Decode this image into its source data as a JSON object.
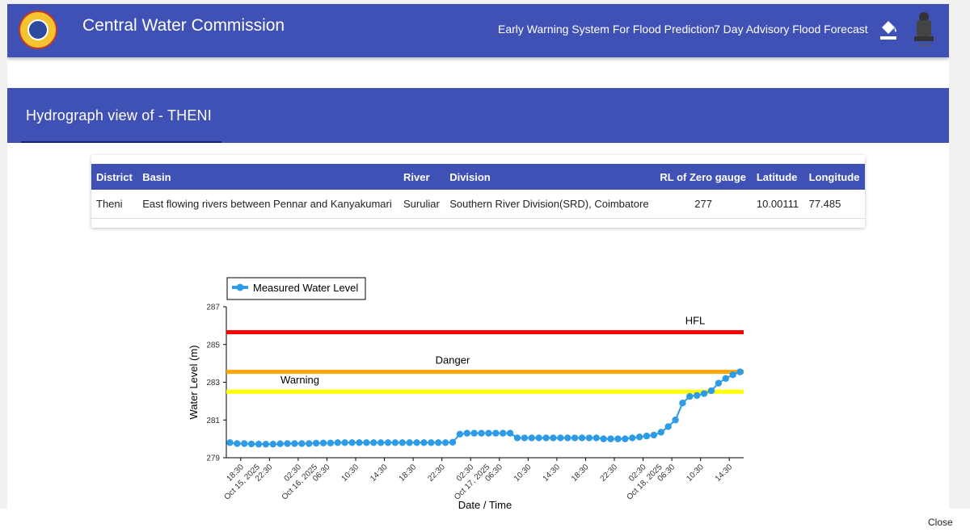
{
  "header": {
    "app_title": "Central Water Commission",
    "nav": [
      "Early Warning System For Flood Prediction",
      "7 Day Advisory Flood Forecast"
    ],
    "icons": [
      "cwc-logo-icon",
      "paint-bucket-icon",
      "national-emblem-icon"
    ]
  },
  "section": {
    "title": "Hydrograph view of - THENI"
  },
  "station": {
    "headers": [
      "District",
      "Basin",
      "River",
      "Division",
      "RL of Zero gauge",
      "Latitude",
      "Longitude"
    ],
    "row": [
      "Theni",
      "East flowing rivers between Pennar and Kanyakumari",
      "Suruliar",
      "Southern River Division(SRD), Coimbatore",
      "277",
      "10.00111",
      "77.485"
    ]
  },
  "colors": {
    "primary": "#3f51b5",
    "hfl": "#ff0000",
    "danger": "#ffa500",
    "warning": "#ffff00",
    "series": "#2e9be6"
  },
  "chart_data": {
    "type": "line",
    "xlabel": "Date / Time",
    "ylabel": "Water Level (m)",
    "ylim": [
      279,
      287
    ],
    "yticks": [
      "279",
      "281",
      "283",
      "285",
      "287"
    ],
    "x_start": "2025-10-15 16:30",
    "x_end": "2025-10-18 16:30",
    "xticks": [
      {
        "label": "18:30",
        "t": "2025-10-15 18:30",
        "date": false
      },
      {
        "label": "Oct 15, 2025",
        "t": "2025-10-15 20:45",
        "date": true
      },
      {
        "label": "22:30",
        "t": "2025-10-15 22:30",
        "date": false
      },
      {
        "label": "02:30",
        "t": "2025-10-16 02:30",
        "date": false
      },
      {
        "label": "Oct 16, 2025",
        "t": "2025-10-16 04:45",
        "date": true
      },
      {
        "label": "06:30",
        "t": "2025-10-16 06:30",
        "date": false
      },
      {
        "label": "10:30",
        "t": "2025-10-16 10:30",
        "date": false
      },
      {
        "label": "14:30",
        "t": "2025-10-16 14:30",
        "date": false
      },
      {
        "label": "18:30",
        "t": "2025-10-16 18:30",
        "date": false
      },
      {
        "label": "22:30",
        "t": "2025-10-16 22:30",
        "date": false
      },
      {
        "label": "02:30",
        "t": "2025-10-17 02:30",
        "date": false
      },
      {
        "label": "Oct 17, 2025",
        "t": "2025-10-17 04:45",
        "date": true
      },
      {
        "label": "06:30",
        "t": "2025-10-17 06:30",
        "date": false
      },
      {
        "label": "10:30",
        "t": "2025-10-17 10:30",
        "date": false
      },
      {
        "label": "14:30",
        "t": "2025-10-17 14:30",
        "date": false
      },
      {
        "label": "18:30",
        "t": "2025-10-17 18:30",
        "date": false
      },
      {
        "label": "22:30",
        "t": "2025-10-17 22:30",
        "date": false
      },
      {
        "label": "02:30",
        "t": "2025-10-18 02:30",
        "date": false
      },
      {
        "label": "Oct 18, 2025",
        "t": "2025-10-18 04:45",
        "date": true
      },
      {
        "label": "06:30",
        "t": "2025-10-18 06:30",
        "date": false
      },
      {
        "label": "10:30",
        "t": "2025-10-18 10:30",
        "date": false
      },
      {
        "label": "14:30",
        "t": "2025-10-18 14:30",
        "date": false
      }
    ],
    "thresholds": [
      {
        "name": "HFL",
        "value": 285.65,
        "color": "#ff0000"
      },
      {
        "name": "Danger",
        "value": 283.55,
        "color": "#ffa500"
      },
      {
        "name": "Warning",
        "value": 282.5,
        "color": "#ffff00"
      }
    ],
    "series": [
      {
        "name": "Measured Water Level",
        "x": [
          "2025-10-15 17:00",
          "2025-10-15 18:00",
          "2025-10-15 19:00",
          "2025-10-15 20:00",
          "2025-10-15 21:00",
          "2025-10-15 22:00",
          "2025-10-15 23:00",
          "2025-10-16 00:00",
          "2025-10-16 01:00",
          "2025-10-16 02:00",
          "2025-10-16 03:00",
          "2025-10-16 04:00",
          "2025-10-16 05:00",
          "2025-10-16 06:00",
          "2025-10-16 07:00",
          "2025-10-16 08:00",
          "2025-10-16 09:00",
          "2025-10-16 10:00",
          "2025-10-16 11:00",
          "2025-10-16 12:00",
          "2025-10-16 13:00",
          "2025-10-16 14:00",
          "2025-10-16 15:00",
          "2025-10-16 16:00",
          "2025-10-16 17:00",
          "2025-10-16 18:00",
          "2025-10-16 19:00",
          "2025-10-16 20:00",
          "2025-10-16 21:00",
          "2025-10-16 22:00",
          "2025-10-16 23:00",
          "2025-10-17 00:00",
          "2025-10-17 01:00",
          "2025-10-17 02:00",
          "2025-10-17 03:00",
          "2025-10-17 04:00",
          "2025-10-17 05:00",
          "2025-10-17 06:00",
          "2025-10-17 07:00",
          "2025-10-17 08:00",
          "2025-10-17 09:00",
          "2025-10-17 10:00",
          "2025-10-17 11:00",
          "2025-10-17 12:00",
          "2025-10-17 13:00",
          "2025-10-17 14:00",
          "2025-10-17 15:00",
          "2025-10-17 16:00",
          "2025-10-17 17:00",
          "2025-10-17 18:00",
          "2025-10-17 19:00",
          "2025-10-17 20:00",
          "2025-10-17 21:00",
          "2025-10-17 22:00",
          "2025-10-17 23:00",
          "2025-10-18 00:00",
          "2025-10-18 01:00",
          "2025-10-18 02:00",
          "2025-10-18 03:00",
          "2025-10-18 04:00",
          "2025-10-18 05:00",
          "2025-10-18 06:00",
          "2025-10-18 07:00",
          "2025-10-18 08:00",
          "2025-10-18 09:00",
          "2025-10-18 10:00",
          "2025-10-18 11:00",
          "2025-10-18 12:00",
          "2025-10-18 13:00",
          "2025-10-18 14:00",
          "2025-10-18 15:00",
          "2025-10-18 16:00"
        ],
        "y": [
          279.8,
          279.75,
          279.75,
          279.73,
          279.72,
          279.72,
          279.72,
          279.74,
          279.75,
          279.75,
          279.75,
          279.75,
          279.77,
          279.78,
          279.78,
          279.8,
          279.8,
          279.8,
          279.8,
          279.8,
          279.8,
          279.8,
          279.8,
          279.8,
          279.8,
          279.8,
          279.8,
          279.8,
          279.8,
          279.8,
          279.8,
          279.82,
          280.25,
          280.3,
          280.3,
          280.3,
          280.3,
          280.3,
          280.3,
          280.3,
          280.05,
          280.05,
          280.05,
          280.05,
          280.05,
          280.05,
          280.05,
          280.05,
          280.05,
          280.05,
          280.05,
          280.05,
          280.0,
          280.0,
          280.0,
          280.0,
          280.05,
          280.1,
          280.15,
          280.2,
          280.35,
          280.65,
          281.0,
          281.9,
          282.25,
          282.3,
          282.4,
          282.55,
          282.95,
          283.2,
          283.4,
          283.55
        ]
      }
    ],
    "legend": "top-left"
  },
  "footer": {
    "close_label": "Close"
  }
}
